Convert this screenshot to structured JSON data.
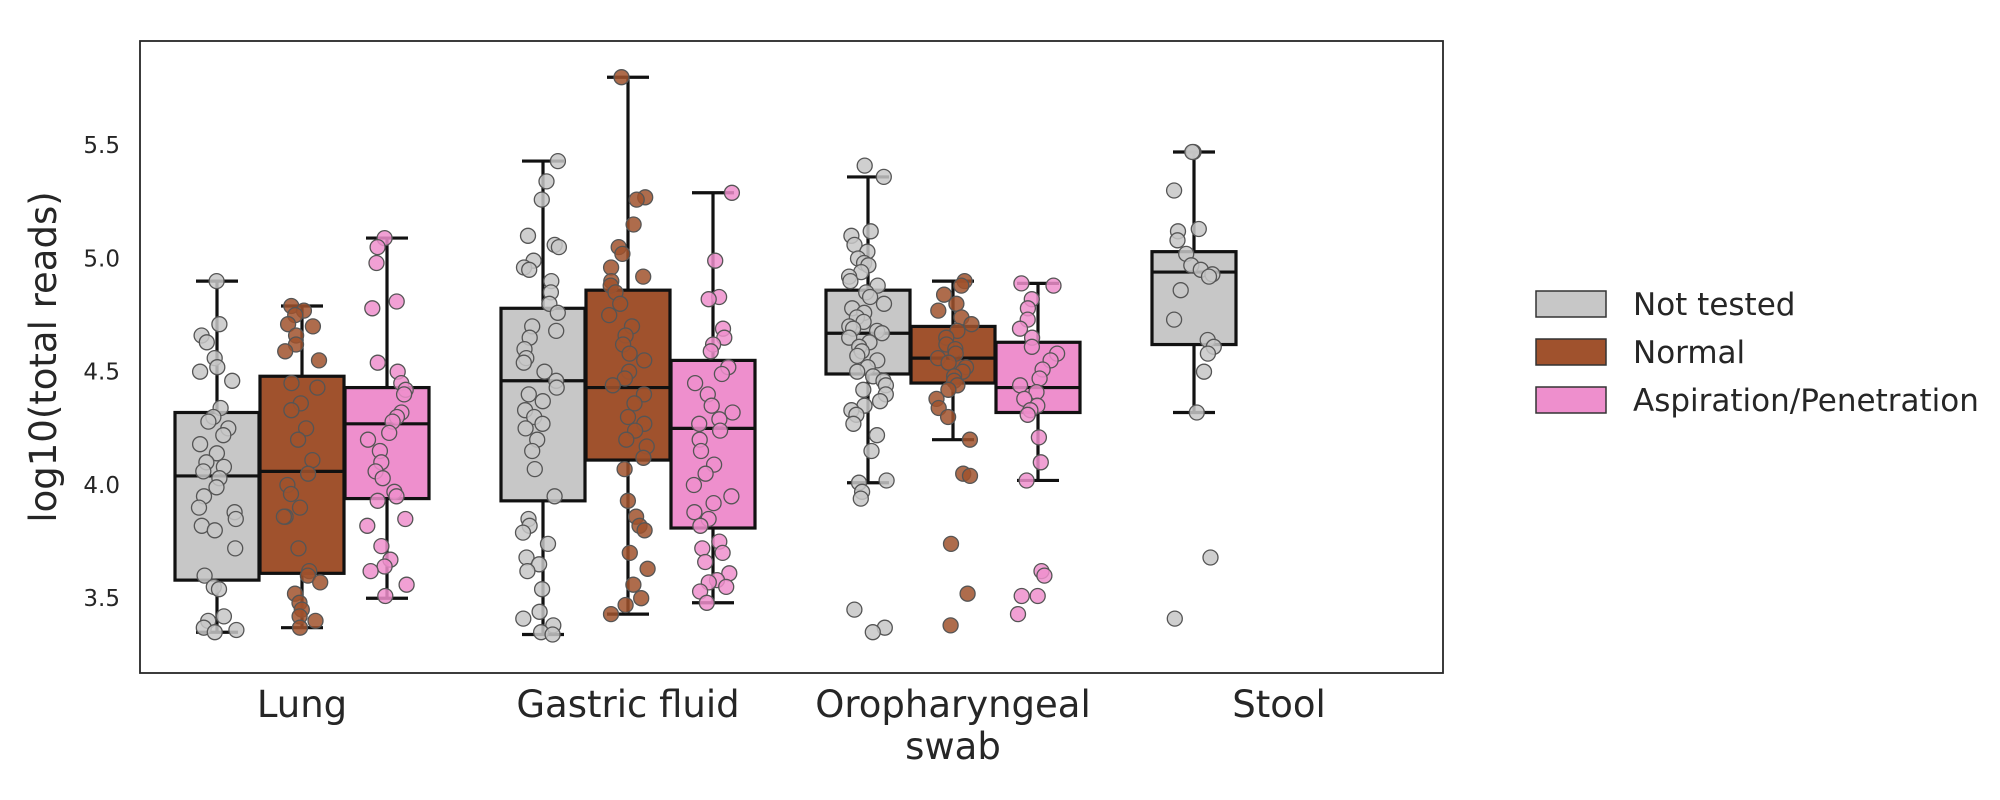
{
  "chart_data": {
    "type": "box",
    "ylabel": "log10(total reads)",
    "xlabel": "",
    "ylim": [
      3.17,
      5.96
    ],
    "yticks": [
      "3.5",
      "4.0",
      "4.5",
      "5.0",
      "5.5"
    ],
    "grid": false,
    "legend_position": "right",
    "categories": [
      {
        "lines": [
          "Lung"
        ]
      },
      {
        "lines": [
          "Gastric fluid"
        ]
      },
      {
        "lines": [
          "Oropharyngeal",
          "swab"
        ]
      },
      {
        "lines": [
          "Stool"
        ]
      }
    ],
    "series": [
      {
        "name": "Not tested",
        "color": "#c7c7c7"
      },
      {
        "name": "Normal",
        "color": "#a0522d"
      },
      {
        "name": "Aspiration/Penetration",
        "color": "#ee8fcd"
      }
    ],
    "boxes": [
      {
        "category": 0,
        "series": 0,
        "q1": 3.58,
        "median": 4.04,
        "q3": 4.32,
        "whisker_low": 3.35,
        "whisker_high": 4.9,
        "points": [
          4.9,
          4.71,
          4.66,
          4.63,
          4.56,
          4.52,
          4.5,
          4.46,
          4.34,
          4.3,
          4.28,
          4.25,
          4.22,
          4.18,
          4.14,
          4.1,
          4.08,
          4.06,
          4.03,
          3.99,
          3.95,
          3.9,
          3.88,
          3.85,
          3.82,
          3.8,
          3.72,
          3.6,
          3.55,
          3.54,
          3.42,
          3.4,
          3.37,
          3.36,
          3.35
        ],
        "outliers": []
      },
      {
        "category": 0,
        "series": 1,
        "q1": 3.61,
        "median": 4.06,
        "q3": 4.48,
        "whisker_low": 3.37,
        "whisker_high": 4.79,
        "points": [
          4.79,
          4.77,
          4.75,
          4.71,
          4.7,
          4.66,
          4.62,
          4.59,
          4.55,
          4.45,
          4.43,
          4.36,
          4.33,
          4.25,
          4.2,
          4.11,
          4.05,
          4.0,
          3.96,
          3.9,
          3.86,
          3.86,
          3.72,
          3.62,
          3.6,
          3.57,
          3.52,
          3.48,
          3.45,
          3.42,
          3.4,
          3.37
        ],
        "outliers": []
      },
      {
        "category": 0,
        "series": 2,
        "q1": 3.94,
        "median": 4.27,
        "q3": 4.43,
        "whisker_low": 3.5,
        "whisker_high": 5.09,
        "points": [
          5.09,
          5.05,
          4.98,
          4.81,
          4.78,
          4.54,
          4.5,
          4.45,
          4.42,
          4.4,
          4.32,
          4.3,
          4.28,
          4.23,
          4.2,
          4.15,
          4.1,
          4.06,
          4.03,
          3.97,
          3.95,
          3.93,
          3.85,
          3.82,
          3.73,
          3.67,
          3.64,
          3.62,
          3.56,
          3.51
        ],
        "outliers": []
      },
      {
        "category": 1,
        "series": 0,
        "q1": 3.93,
        "median": 4.46,
        "q3": 4.78,
        "whisker_low": 3.34,
        "whisker_high": 5.43,
        "points": [
          5.43,
          5.34,
          5.26,
          5.1,
          5.06,
          5.05,
          4.99,
          4.96,
          4.95,
          4.9,
          4.85,
          4.8,
          4.76,
          4.7,
          4.68,
          4.65,
          4.6,
          4.56,
          4.54,
          4.5,
          4.46,
          4.43,
          4.4,
          4.37,
          4.33,
          4.3,
          4.27,
          4.25,
          4.2,
          4.15,
          4.07,
          3.95,
          3.85,
          3.82,
          3.79,
          3.74,
          3.68,
          3.65,
          3.62,
          3.54,
          3.44,
          3.41,
          3.38,
          3.35,
          3.34
        ],
        "outliers": []
      },
      {
        "category": 1,
        "series": 1,
        "q1": 4.11,
        "median": 4.43,
        "q3": 4.86,
        "whisker_low": 3.43,
        "whisker_high": 5.8,
        "points": [
          5.8,
          5.27,
          5.26,
          5.15,
          5.05,
          5.02,
          4.96,
          4.92,
          4.9,
          4.88,
          4.85,
          4.8,
          4.75,
          4.7,
          4.66,
          4.62,
          4.58,
          4.55,
          4.5,
          4.47,
          4.44,
          4.4,
          4.36,
          4.3,
          4.27,
          4.24,
          4.2,
          4.17,
          4.12,
          4.07,
          3.93,
          3.86,
          3.82,
          3.8,
          3.7,
          3.63,
          3.56,
          3.5,
          3.47,
          3.43
        ],
        "outliers": []
      },
      {
        "category": 1,
        "series": 2,
        "q1": 3.81,
        "median": 4.25,
        "q3": 4.55,
        "whisker_low": 3.48,
        "whisker_high": 5.29,
        "points": [
          5.29,
          4.99,
          4.83,
          4.82,
          4.69,
          4.65,
          4.62,
          4.59,
          4.52,
          4.49,
          4.45,
          4.4,
          4.35,
          4.32,
          4.29,
          4.27,
          4.24,
          4.2,
          4.15,
          4.09,
          4.05,
          4.0,
          3.95,
          3.92,
          3.88,
          3.85,
          3.82,
          3.75,
          3.72,
          3.7,
          3.66,
          3.61,
          3.58,
          3.57,
          3.55,
          3.53,
          3.48
        ],
        "outliers": []
      },
      {
        "category": 2,
        "series": 0,
        "q1": 4.49,
        "median": 4.67,
        "q3": 4.86,
        "whisker_low": 4.01,
        "whisker_high": 5.36,
        "points": [
          5.41,
          5.36,
          5.12,
          5.1,
          5.06,
          5.03,
          5.0,
          4.98,
          4.97,
          4.94,
          4.92,
          4.9,
          4.88,
          4.85,
          4.83,
          4.8,
          4.78,
          4.76,
          4.74,
          4.72,
          4.7,
          4.69,
          4.68,
          4.67,
          4.65,
          4.63,
          4.61,
          4.59,
          4.57,
          4.55,
          4.52,
          4.5,
          4.48,
          4.46,
          4.44,
          4.42,
          4.4,
          4.37,
          4.35,
          4.33,
          4.31,
          4.27,
          4.22,
          4.15,
          4.02,
          4.01
        ],
        "outliers": [
          3.97,
          3.94,
          3.45,
          3.37,
          3.35
        ]
      },
      {
        "category": 2,
        "series": 1,
        "q1": 4.45,
        "median": 4.56,
        "q3": 4.7,
        "whisker_low": 4.2,
        "whisker_high": 4.9,
        "points": [
          4.9,
          4.88,
          4.84,
          4.8,
          4.77,
          4.74,
          4.71,
          4.68,
          4.65,
          4.62,
          4.6,
          4.58,
          4.56,
          4.54,
          4.52,
          4.5,
          4.48,
          4.46,
          4.44,
          4.42,
          4.38,
          4.34,
          4.3,
          4.2
        ],
        "outliers": [
          4.05,
          4.04,
          3.74,
          3.52,
          3.38
        ]
      },
      {
        "category": 2,
        "series": 2,
        "q1": 4.32,
        "median": 4.43,
        "q3": 4.63,
        "whisker_low": 4.02,
        "whisker_high": 4.89,
        "points": [
          4.89,
          4.88,
          4.82,
          4.78,
          4.73,
          4.69,
          4.65,
          4.61,
          4.58,
          4.55,
          4.51,
          4.47,
          4.44,
          4.41,
          4.38,
          4.35,
          4.33,
          4.31,
          4.21,
          4.1,
          4.02
        ],
        "outliers": [
          3.62,
          3.6,
          3.51,
          3.51,
          3.43
        ]
      },
      {
        "category": 3,
        "series": 0,
        "q1": 4.62,
        "median": 4.94,
        "q3": 5.03,
        "whisker_low": 4.32,
        "whisker_high": 5.47,
        "points": [
          5.47,
          5.47,
          5.3,
          5.13,
          5.12,
          5.08,
          5.02,
          4.97,
          4.95,
          4.93,
          4.92,
          4.86,
          4.73,
          4.64,
          4.61,
          4.58,
          4.5,
          4.32
        ],
        "outliers": [
          3.68,
          3.41
        ]
      }
    ]
  }
}
